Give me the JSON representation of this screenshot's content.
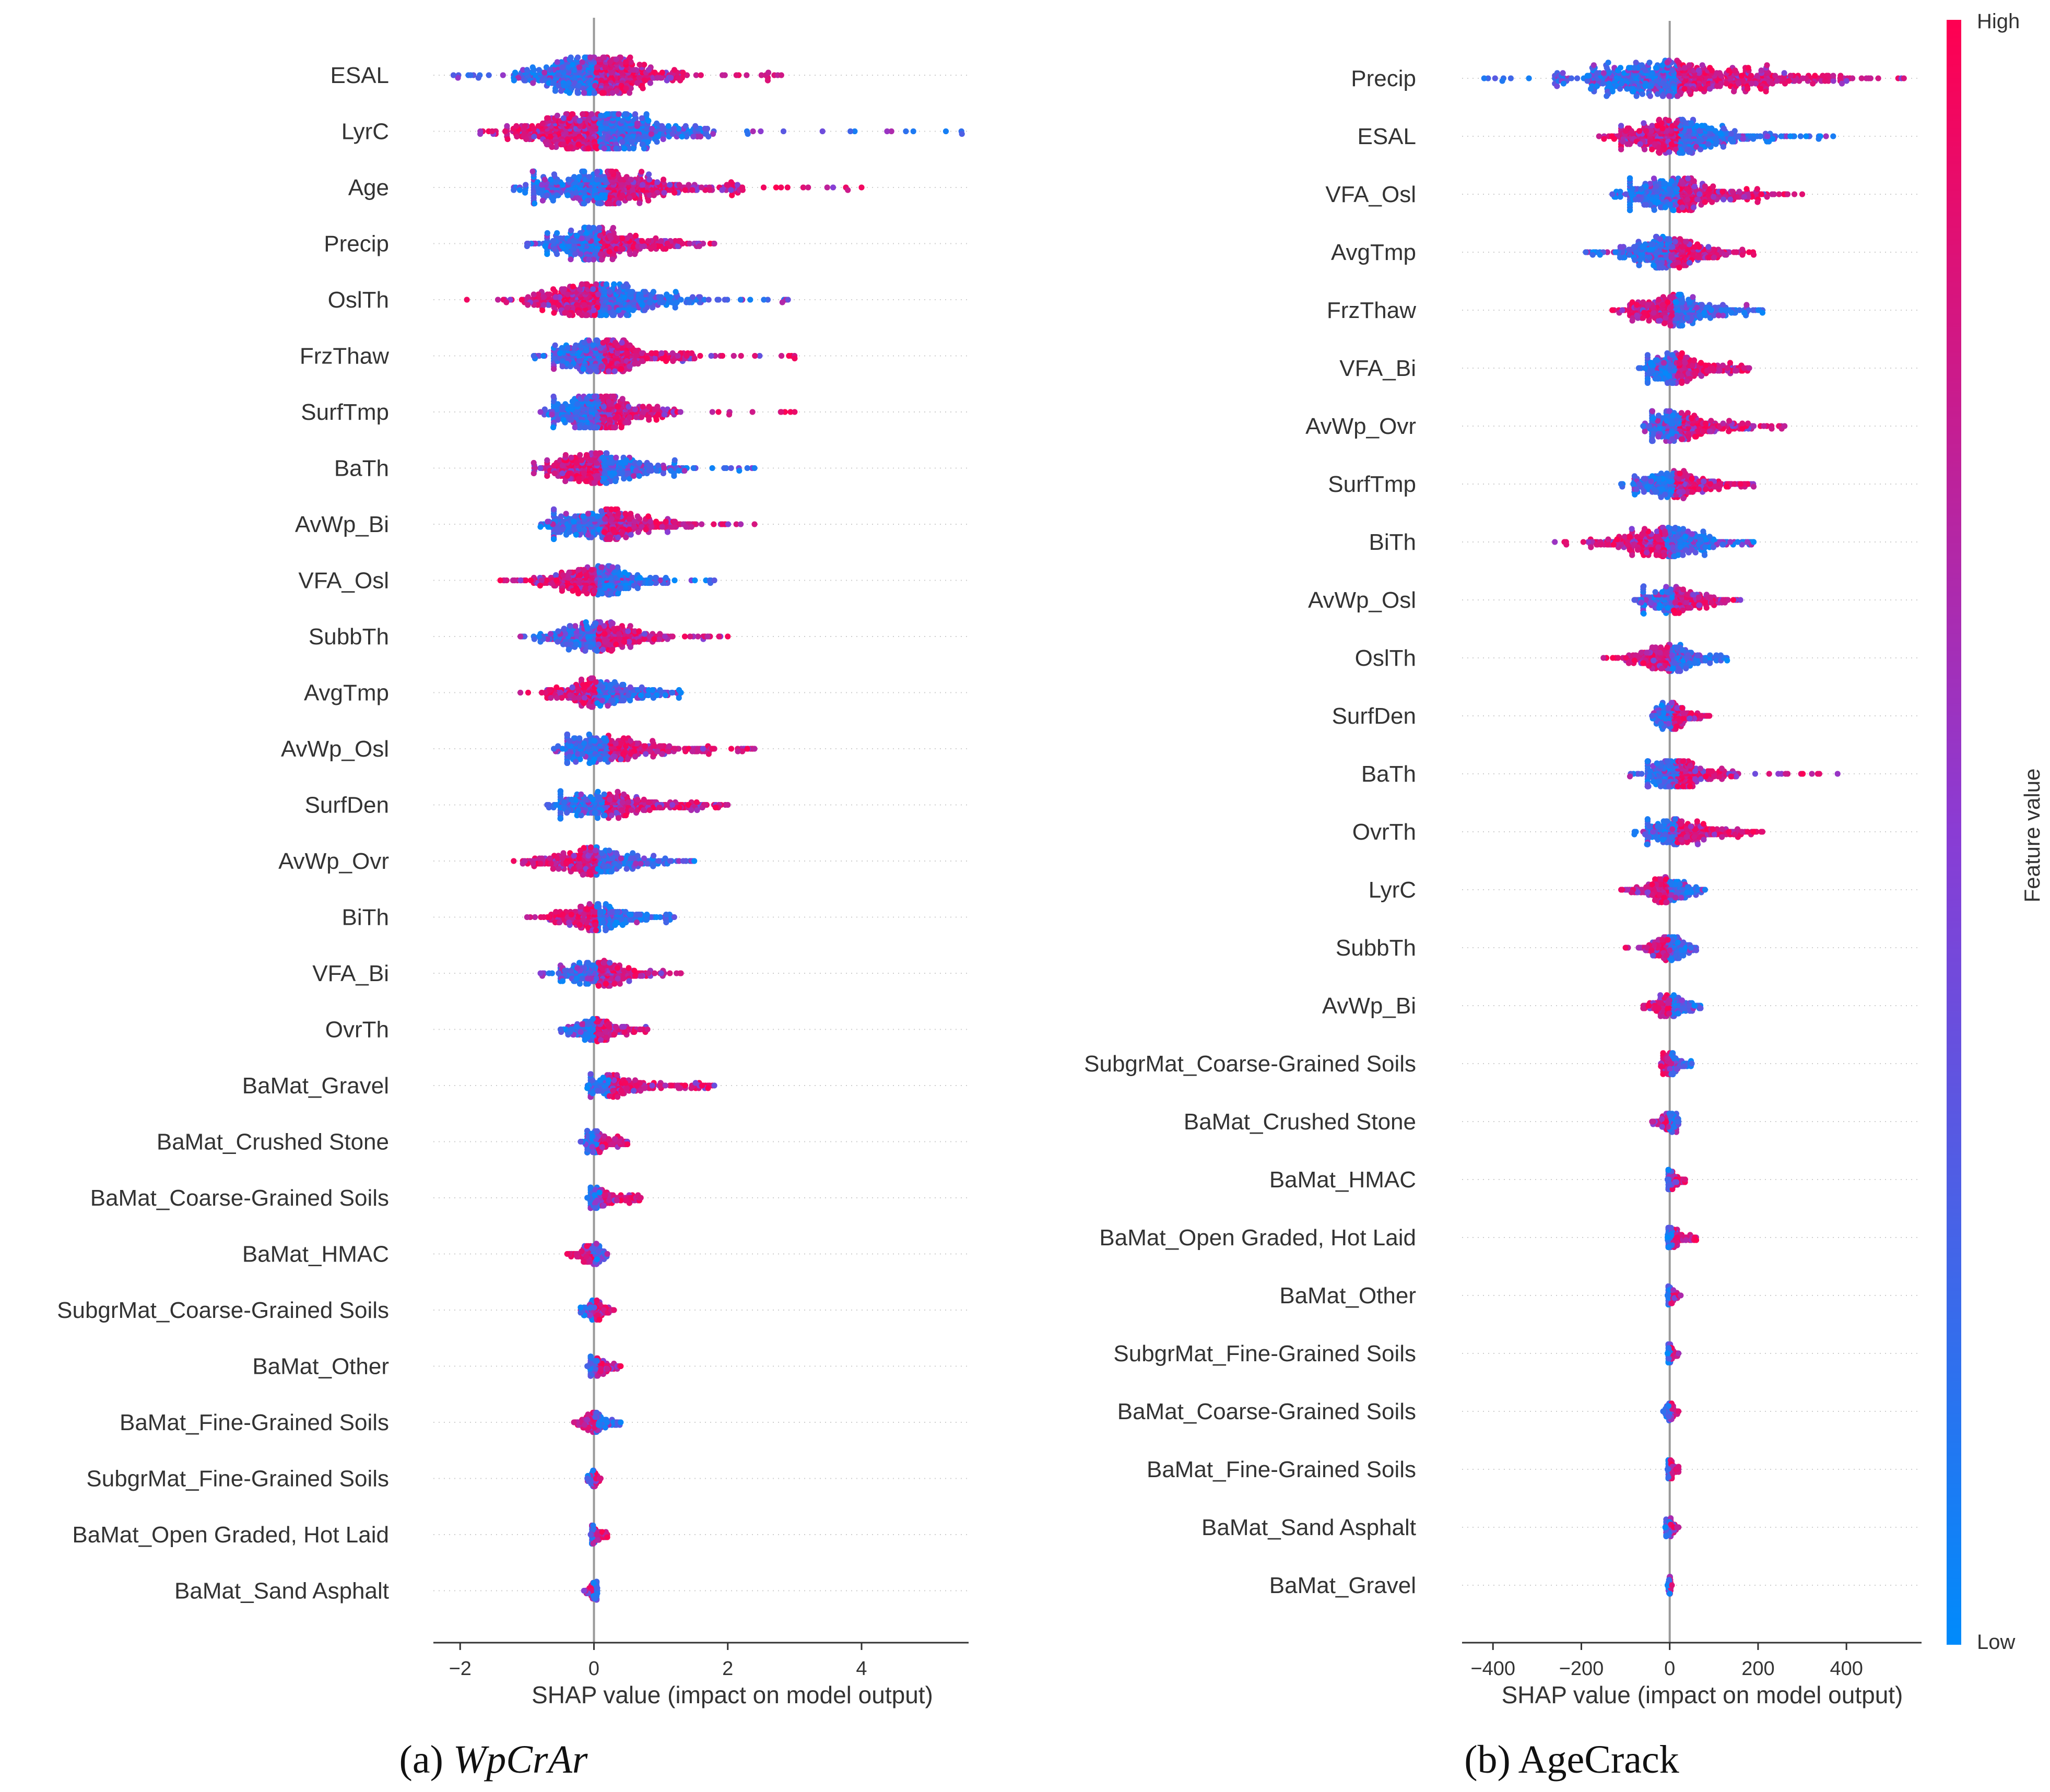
{
  "colors": {
    "low": "#008bfb",
    "high": "#ff0051",
    "mid": "#7f4fd8",
    "axis": "#333333",
    "zero": "#999999",
    "grid": "#cccccc"
  },
  "colorbar": {
    "high_label": "High",
    "low_label": "Low",
    "title": "Feature value"
  },
  "chart_data": [
    {
      "type": "scatter",
      "subtype": "shap-beeswarm",
      "caption_prefix": "(a) ",
      "caption_name": "WpCrAr",
      "caption_italic": true,
      "xlabel": "SHAP value (impact on model output)",
      "xlim": [
        -2.4,
        5.6
      ],
      "xticks": [
        -2,
        0,
        2,
        4
      ],
      "xtick_labels": [
        "−2",
        "0",
        "2",
        "4"
      ],
      "features": [
        {
          "name": "ESAL",
          "min": -2.1,
          "max": 2.8,
          "q_low": -1.2,
          "q_high": 1.4,
          "density": 1.0,
          "high_side": "right"
        },
        {
          "name": "LyrC",
          "min": -1.7,
          "max": 5.5,
          "q_low": -1.3,
          "q_high": 1.8,
          "density": 0.95,
          "high_side": "left"
        },
        {
          "name": "Age",
          "min": -1.2,
          "max": 4.0,
          "q_low": -0.9,
          "q_high": 2.2,
          "density": 0.85,
          "high_side": "right"
        },
        {
          "name": "Precip",
          "min": -1.0,
          "max": 1.8,
          "q_low": -0.7,
          "q_high": 1.3,
          "density": 0.85,
          "high_side": "right"
        },
        {
          "name": "OslTh",
          "min": -1.9,
          "max": 2.9,
          "q_low": -1.1,
          "q_high": 1.6,
          "density": 0.8,
          "high_side": "left"
        },
        {
          "name": "FrzThaw",
          "min": -0.9,
          "max": 3.0,
          "q_low": -0.6,
          "q_high": 1.5,
          "density": 0.8,
          "high_side": "right"
        },
        {
          "name": "SurfTmp",
          "min": -0.8,
          "max": 3.0,
          "q_low": -0.6,
          "q_high": 1.2,
          "density": 0.8,
          "high_side": "right"
        },
        {
          "name": "BaTh",
          "min": -0.9,
          "max": 2.4,
          "q_low": -0.7,
          "q_high": 1.4,
          "density": 0.75,
          "high_side": "left"
        },
        {
          "name": "AvWp_Bi",
          "min": -0.8,
          "max": 2.4,
          "q_low": -0.6,
          "q_high": 1.6,
          "density": 0.75,
          "high_side": "right"
        },
        {
          "name": "VFA_Osl",
          "min": -1.4,
          "max": 1.8,
          "q_low": -0.9,
          "q_high": 1.1,
          "density": 0.7,
          "high_side": "left"
        },
        {
          "name": "SubbTh",
          "min": -1.1,
          "max": 2.0,
          "q_low": -0.8,
          "q_high": 1.2,
          "density": 0.7,
          "high_side": "right"
        },
        {
          "name": "AvgTmp",
          "min": -1.1,
          "max": 1.3,
          "q_low": -0.7,
          "q_high": 1.0,
          "density": 0.7,
          "high_side": "left"
        },
        {
          "name": "AvWp_Osl",
          "min": -0.6,
          "max": 2.4,
          "q_low": -0.4,
          "q_high": 1.8,
          "density": 0.7,
          "high_side": "right"
        },
        {
          "name": "SurfDen",
          "min": -0.7,
          "max": 2.0,
          "q_low": -0.5,
          "q_high": 1.6,
          "density": 0.65,
          "high_side": "right"
        },
        {
          "name": "AvWp_Ovr",
          "min": -1.2,
          "max": 1.5,
          "q_low": -0.9,
          "q_high": 1.1,
          "density": 0.65,
          "high_side": "left"
        },
        {
          "name": "BiTh",
          "min": -1.0,
          "max": 1.2,
          "q_low": -0.7,
          "q_high": 0.9,
          "density": 0.6,
          "high_side": "left"
        },
        {
          "name": "VFA_Bi",
          "min": -0.8,
          "max": 1.3,
          "q_low": -0.5,
          "q_high": 0.9,
          "density": 0.55,
          "high_side": "right"
        },
        {
          "name": "OvrTh",
          "min": -0.5,
          "max": 0.8,
          "q_low": -0.4,
          "q_high": 0.6,
          "density": 0.5,
          "high_side": "right"
        },
        {
          "name": "BaMat_Gravel",
          "min": -0.1,
          "max": 1.8,
          "q_low": -0.05,
          "q_high": 1.6,
          "density": 0.45,
          "high_side": "right"
        },
        {
          "name": "BaMat_Crushed Stone",
          "min": -0.2,
          "max": 0.5,
          "q_low": -0.1,
          "q_high": 0.45,
          "density": 0.4,
          "high_side": "right"
        },
        {
          "name": "BaMat_Coarse-Grained Soils",
          "min": -0.1,
          "max": 0.7,
          "q_low": -0.05,
          "q_high": 0.65,
          "density": 0.35,
          "high_side": "right"
        },
        {
          "name": "BaMat_HMAC",
          "min": -0.4,
          "max": 0.2,
          "q_low": -0.35,
          "q_high": 0.15,
          "density": 0.35,
          "high_side": "left"
        },
        {
          "name": "SubgrMat_Coarse-Grained Soils",
          "min": -0.2,
          "max": 0.3,
          "q_low": -0.15,
          "q_high": 0.25,
          "density": 0.3,
          "high_side": "right"
        },
        {
          "name": "BaMat_Other",
          "min": -0.1,
          "max": 0.4,
          "q_low": -0.05,
          "q_high": 0.35,
          "density": 0.3,
          "high_side": "right"
        },
        {
          "name": "BaMat_Fine-Grained Soils",
          "min": -0.3,
          "max": 0.4,
          "q_low": -0.25,
          "q_high": 0.35,
          "density": 0.3,
          "high_side": "left"
        },
        {
          "name": "SubgrMat_Fine-Grained Soils",
          "min": -0.1,
          "max": 0.1,
          "q_low": -0.08,
          "q_high": 0.08,
          "density": 0.25,
          "high_side": "right"
        },
        {
          "name": "BaMat_Open Graded, Hot Laid",
          "min": -0.05,
          "max": 0.2,
          "q_low": -0.03,
          "q_high": 0.18,
          "density": 0.25,
          "high_side": "right"
        },
        {
          "name": "BaMat_Sand Asphalt",
          "min": -0.15,
          "max": 0.05,
          "q_low": -0.12,
          "q_high": 0.04,
          "density": 0.25,
          "high_side": "left"
        }
      ]
    },
    {
      "type": "scatter",
      "subtype": "shap-beeswarm",
      "caption_prefix": "(b) ",
      "caption_name": "AgeCrack",
      "caption_italic": false,
      "xlabel": "SHAP value (impact on model output)",
      "xlim": [
        -470,
        570
      ],
      "xticks": [
        -400,
        -200,
        0,
        200,
        400
      ],
      "xtick_labels": [
        "−400",
        "−200",
        "0",
        "200",
        "400"
      ],
      "features": [
        {
          "name": "Precip",
          "min": -420,
          "max": 530,
          "q_low": -260,
          "q_high": 370,
          "density": 1.0,
          "high_side": "right"
        },
        {
          "name": "ESAL",
          "min": -160,
          "max": 370,
          "q_low": -110,
          "q_high": 240,
          "density": 0.9,
          "high_side": "left"
        },
        {
          "name": "VFA_Osl",
          "min": -130,
          "max": 300,
          "q_low": -90,
          "q_high": 220,
          "density": 0.85,
          "high_side": "right"
        },
        {
          "name": "AvgTmp",
          "min": -190,
          "max": 190,
          "q_low": -120,
          "q_high": 140,
          "density": 0.8,
          "high_side": "right"
        },
        {
          "name": "FrzThaw",
          "min": -130,
          "max": 210,
          "q_low": -90,
          "q_high": 150,
          "density": 0.8,
          "high_side": "left"
        },
        {
          "name": "VFA_Bi",
          "min": -70,
          "max": 180,
          "q_low": -50,
          "q_high": 140,
          "density": 0.75,
          "high_side": "right"
        },
        {
          "name": "AvWp_Ovr",
          "min": -60,
          "max": 260,
          "q_low": -40,
          "q_high": 190,
          "density": 0.75,
          "high_side": "right"
        },
        {
          "name": "SurfTmp",
          "min": -110,
          "max": 190,
          "q_low": -80,
          "q_high": 140,
          "density": 0.7,
          "high_side": "right"
        },
        {
          "name": "BiTh",
          "min": -260,
          "max": 190,
          "q_low": -180,
          "q_high": 130,
          "density": 0.7,
          "high_side": "left"
        },
        {
          "name": "AvWp_Osl",
          "min": -80,
          "max": 160,
          "q_low": -60,
          "q_high": 120,
          "density": 0.65,
          "high_side": "right"
        },
        {
          "name": "OslTh",
          "min": -150,
          "max": 130,
          "q_low": -110,
          "q_high": 100,
          "density": 0.6,
          "high_side": "left"
        },
        {
          "name": "SurfDen",
          "min": -40,
          "max": 90,
          "q_low": -30,
          "q_high": 70,
          "density": 0.6,
          "high_side": "right"
        },
        {
          "name": "BaTh",
          "min": -90,
          "max": 380,
          "q_low": -50,
          "q_high": 160,
          "density": 0.55,
          "high_side": "right"
        },
        {
          "name": "OvrTh",
          "min": -80,
          "max": 210,
          "q_low": -50,
          "q_high": 160,
          "density": 0.55,
          "high_side": "right"
        },
        {
          "name": "LyrC",
          "min": -110,
          "max": 80,
          "q_low": -80,
          "q_high": 60,
          "density": 0.55,
          "high_side": "left"
        },
        {
          "name": "SubbTh",
          "min": -100,
          "max": 60,
          "q_low": -70,
          "q_high": 45,
          "density": 0.55,
          "high_side": "left"
        },
        {
          "name": "AvWp_Bi",
          "min": -60,
          "max": 70,
          "q_low": -45,
          "q_high": 55,
          "density": 0.5,
          "high_side": "left"
        },
        {
          "name": "SubgrMat_Coarse-Grained Soils",
          "min": -20,
          "max": 50,
          "q_low": -15,
          "q_high": 40,
          "density": 0.4,
          "high_side": "left"
        },
        {
          "name": "BaMat_Crushed Stone",
          "min": -40,
          "max": 20,
          "q_low": -30,
          "q_high": 15,
          "density": 0.4,
          "high_side": "left"
        },
        {
          "name": "BaMat_HMAC",
          "min": -5,
          "max": 35,
          "q_low": -3,
          "q_high": 30,
          "density": 0.3,
          "high_side": "right"
        },
        {
          "name": "BaMat_Open Graded, Hot Laid",
          "min": -5,
          "max": 60,
          "q_low": -3,
          "q_high": 50,
          "density": 0.3,
          "high_side": "right"
        },
        {
          "name": "BaMat_Other",
          "min": -5,
          "max": 25,
          "q_low": -3,
          "q_high": 20,
          "density": 0.25,
          "high_side": "right"
        },
        {
          "name": "SubgrMat_Fine-Grained Soils",
          "min": -5,
          "max": 20,
          "q_low": -3,
          "q_high": 15,
          "density": 0.25,
          "high_side": "right"
        },
        {
          "name": "BaMat_Coarse-Grained Soils",
          "min": -15,
          "max": 20,
          "q_low": -10,
          "q_high": 15,
          "density": 0.25,
          "high_side": "right"
        },
        {
          "name": "BaMat_Fine-Grained Soils",
          "min": -5,
          "max": 20,
          "q_low": -3,
          "q_high": 15,
          "density": 0.25,
          "high_side": "right"
        },
        {
          "name": "BaMat_Sand Asphalt",
          "min": -10,
          "max": 20,
          "q_low": -8,
          "q_high": 15,
          "density": 0.25,
          "high_side": "right"
        },
        {
          "name": "BaMat_Gravel",
          "min": -5,
          "max": 5,
          "q_low": -3,
          "q_high": 3,
          "density": 0.2,
          "high_side": "right"
        }
      ]
    }
  ]
}
